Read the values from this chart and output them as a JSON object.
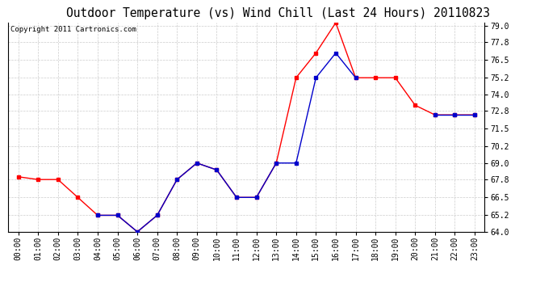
{
  "title": "Outdoor Temperature (vs) Wind Chill (Last 24 Hours) 20110823",
  "copyright": "Copyright 2011 Cartronics.com",
  "hours": [
    "00:00",
    "01:00",
    "02:00",
    "03:00",
    "04:00",
    "05:00",
    "06:00",
    "07:00",
    "08:00",
    "09:00",
    "10:00",
    "11:00",
    "12:00",
    "13:00",
    "14:00",
    "15:00",
    "16:00",
    "17:00",
    "18:00",
    "19:00",
    "20:00",
    "21:00",
    "22:00",
    "23:00"
  ],
  "temp": [
    68.0,
    67.8,
    67.8,
    66.5,
    65.2,
    65.2,
    64.0,
    65.2,
    67.8,
    69.0,
    68.5,
    66.5,
    66.5,
    69.0,
    75.2,
    77.0,
    79.2,
    75.2,
    75.2,
    75.2,
    73.2,
    72.5,
    72.5,
    72.5
  ],
  "wind_chill": [
    null,
    null,
    null,
    null,
    65.2,
    65.2,
    64.0,
    65.2,
    67.8,
    69.0,
    68.5,
    66.5,
    66.5,
    69.0,
    69.0,
    75.2,
    77.0,
    75.2,
    null,
    null,
    null,
    72.5,
    72.5,
    72.5
  ],
  "temp_color": "#ff0000",
  "wind_chill_color": "#0000cc",
  "background_color": "#ffffff",
  "grid_color": "#cccccc",
  "ylim": [
    64.0,
    79.2
  ],
  "yticks": [
    64.0,
    65.2,
    66.5,
    67.8,
    69.0,
    70.2,
    71.5,
    72.8,
    74.0,
    75.2,
    76.5,
    77.8,
    79.0
  ],
  "title_fontsize": 10.5,
  "copyright_fontsize": 6.5,
  "tick_fontsize": 7.0
}
